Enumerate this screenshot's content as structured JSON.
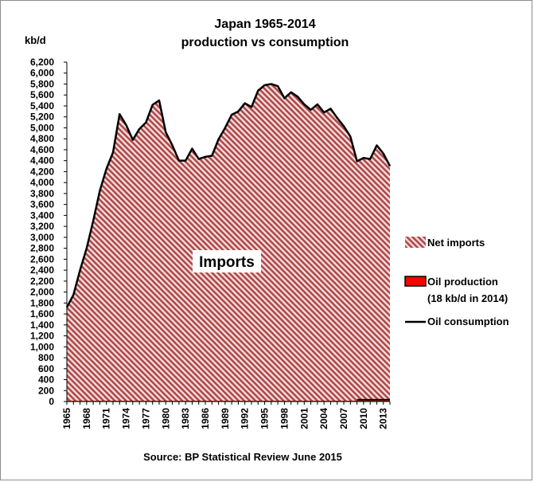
{
  "chart_data": {
    "type": "area",
    "title": [
      "Japan 1965-2014",
      "production vs consumption"
    ],
    "ylabel": "kb/d",
    "xlabel": "",
    "ylim": [
      0,
      6200
    ],
    "yticks": [
      0,
      200,
      400,
      600,
      800,
      1000,
      1200,
      1400,
      1600,
      1800,
      2000,
      2200,
      2400,
      2600,
      2800,
      3000,
      3200,
      3400,
      3600,
      3800,
      4000,
      4200,
      4400,
      4600,
      4800,
      5000,
      5200,
      5400,
      5600,
      5800,
      6000,
      6200
    ],
    "ytick_labels": [
      "0",
      "200",
      "400",
      "600",
      "800",
      "1,000",
      "1,200",
      "1,400",
      "1,600",
      "1,800",
      "2,000",
      "2,200",
      "2,400",
      "2,600",
      "2,800",
      "3,000",
      "3,200",
      "3,400",
      "3,600",
      "3,800",
      "4,000",
      "4,200",
      "4,400",
      "4,600",
      "4,800",
      "5,000",
      "5,200",
      "5,400",
      "5,600",
      "5,800",
      "6,000",
      "6,200"
    ],
    "xticks": [
      1965,
      1968,
      1971,
      1974,
      1977,
      1980,
      1983,
      1986,
      1989,
      1992,
      1995,
      1998,
      2001,
      2004,
      2007,
      2010,
      2013
    ],
    "x": [
      1965,
      1966,
      1967,
      1968,
      1969,
      1970,
      1971,
      1972,
      1973,
      1974,
      1975,
      1976,
      1977,
      1978,
      1979,
      1980,
      1981,
      1982,
      1983,
      1984,
      1985,
      1986,
      1987,
      1988,
      1989,
      1990,
      1991,
      1992,
      1993,
      1994,
      1995,
      1996,
      1997,
      1998,
      1999,
      2000,
      2001,
      2002,
      2003,
      2004,
      2005,
      2006,
      2007,
      2008,
      2009,
      2010,
      2011,
      2012,
      2013,
      2014
    ],
    "series": [
      {
        "name": "Oil consumption",
        "values": [
          1720,
          1950,
          2400,
          2800,
          3300,
          3850,
          4250,
          4550,
          5250,
          5050,
          4780,
          4980,
          5100,
          5420,
          5500,
          4920,
          4680,
          4400,
          4400,
          4620,
          4430,
          4470,
          4490,
          4790,
          5000,
          5240,
          5300,
          5450,
          5380,
          5680,
          5780,
          5800,
          5760,
          5540,
          5650,
          5570,
          5430,
          5330,
          5430,
          5280,
          5350,
          5180,
          5030,
          4840,
          4390,
          4450,
          4430,
          4680,
          4530,
          4300
        ]
      },
      {
        "name": "Oil production",
        "values": [
          15,
          15,
          15,
          15,
          15,
          15,
          15,
          15,
          15,
          15,
          15,
          15,
          15,
          15,
          15,
          15,
          15,
          15,
          15,
          15,
          15,
          15,
          15,
          15,
          15,
          15,
          15,
          15,
          15,
          15,
          15,
          15,
          15,
          15,
          15,
          15,
          15,
          15,
          15,
          15,
          15,
          15,
          15,
          15,
          18,
          18,
          18,
          18,
          18,
          18
        ]
      }
    ],
    "legend": [
      "Net imports",
      "Oil production",
      "(18 kb/d in 2014)",
      "Oil consumption"
    ],
    "legend_position": "right",
    "annotation": "Imports",
    "source": "Source: BP Statistical Review  June 2015",
    "colors": {
      "imports_stripe_dark": "#b04848",
      "imports_stripe_light": "#f4dede",
      "production_fill": "#ff0000",
      "consumption_line": "#000000"
    },
    "grid": false
  }
}
